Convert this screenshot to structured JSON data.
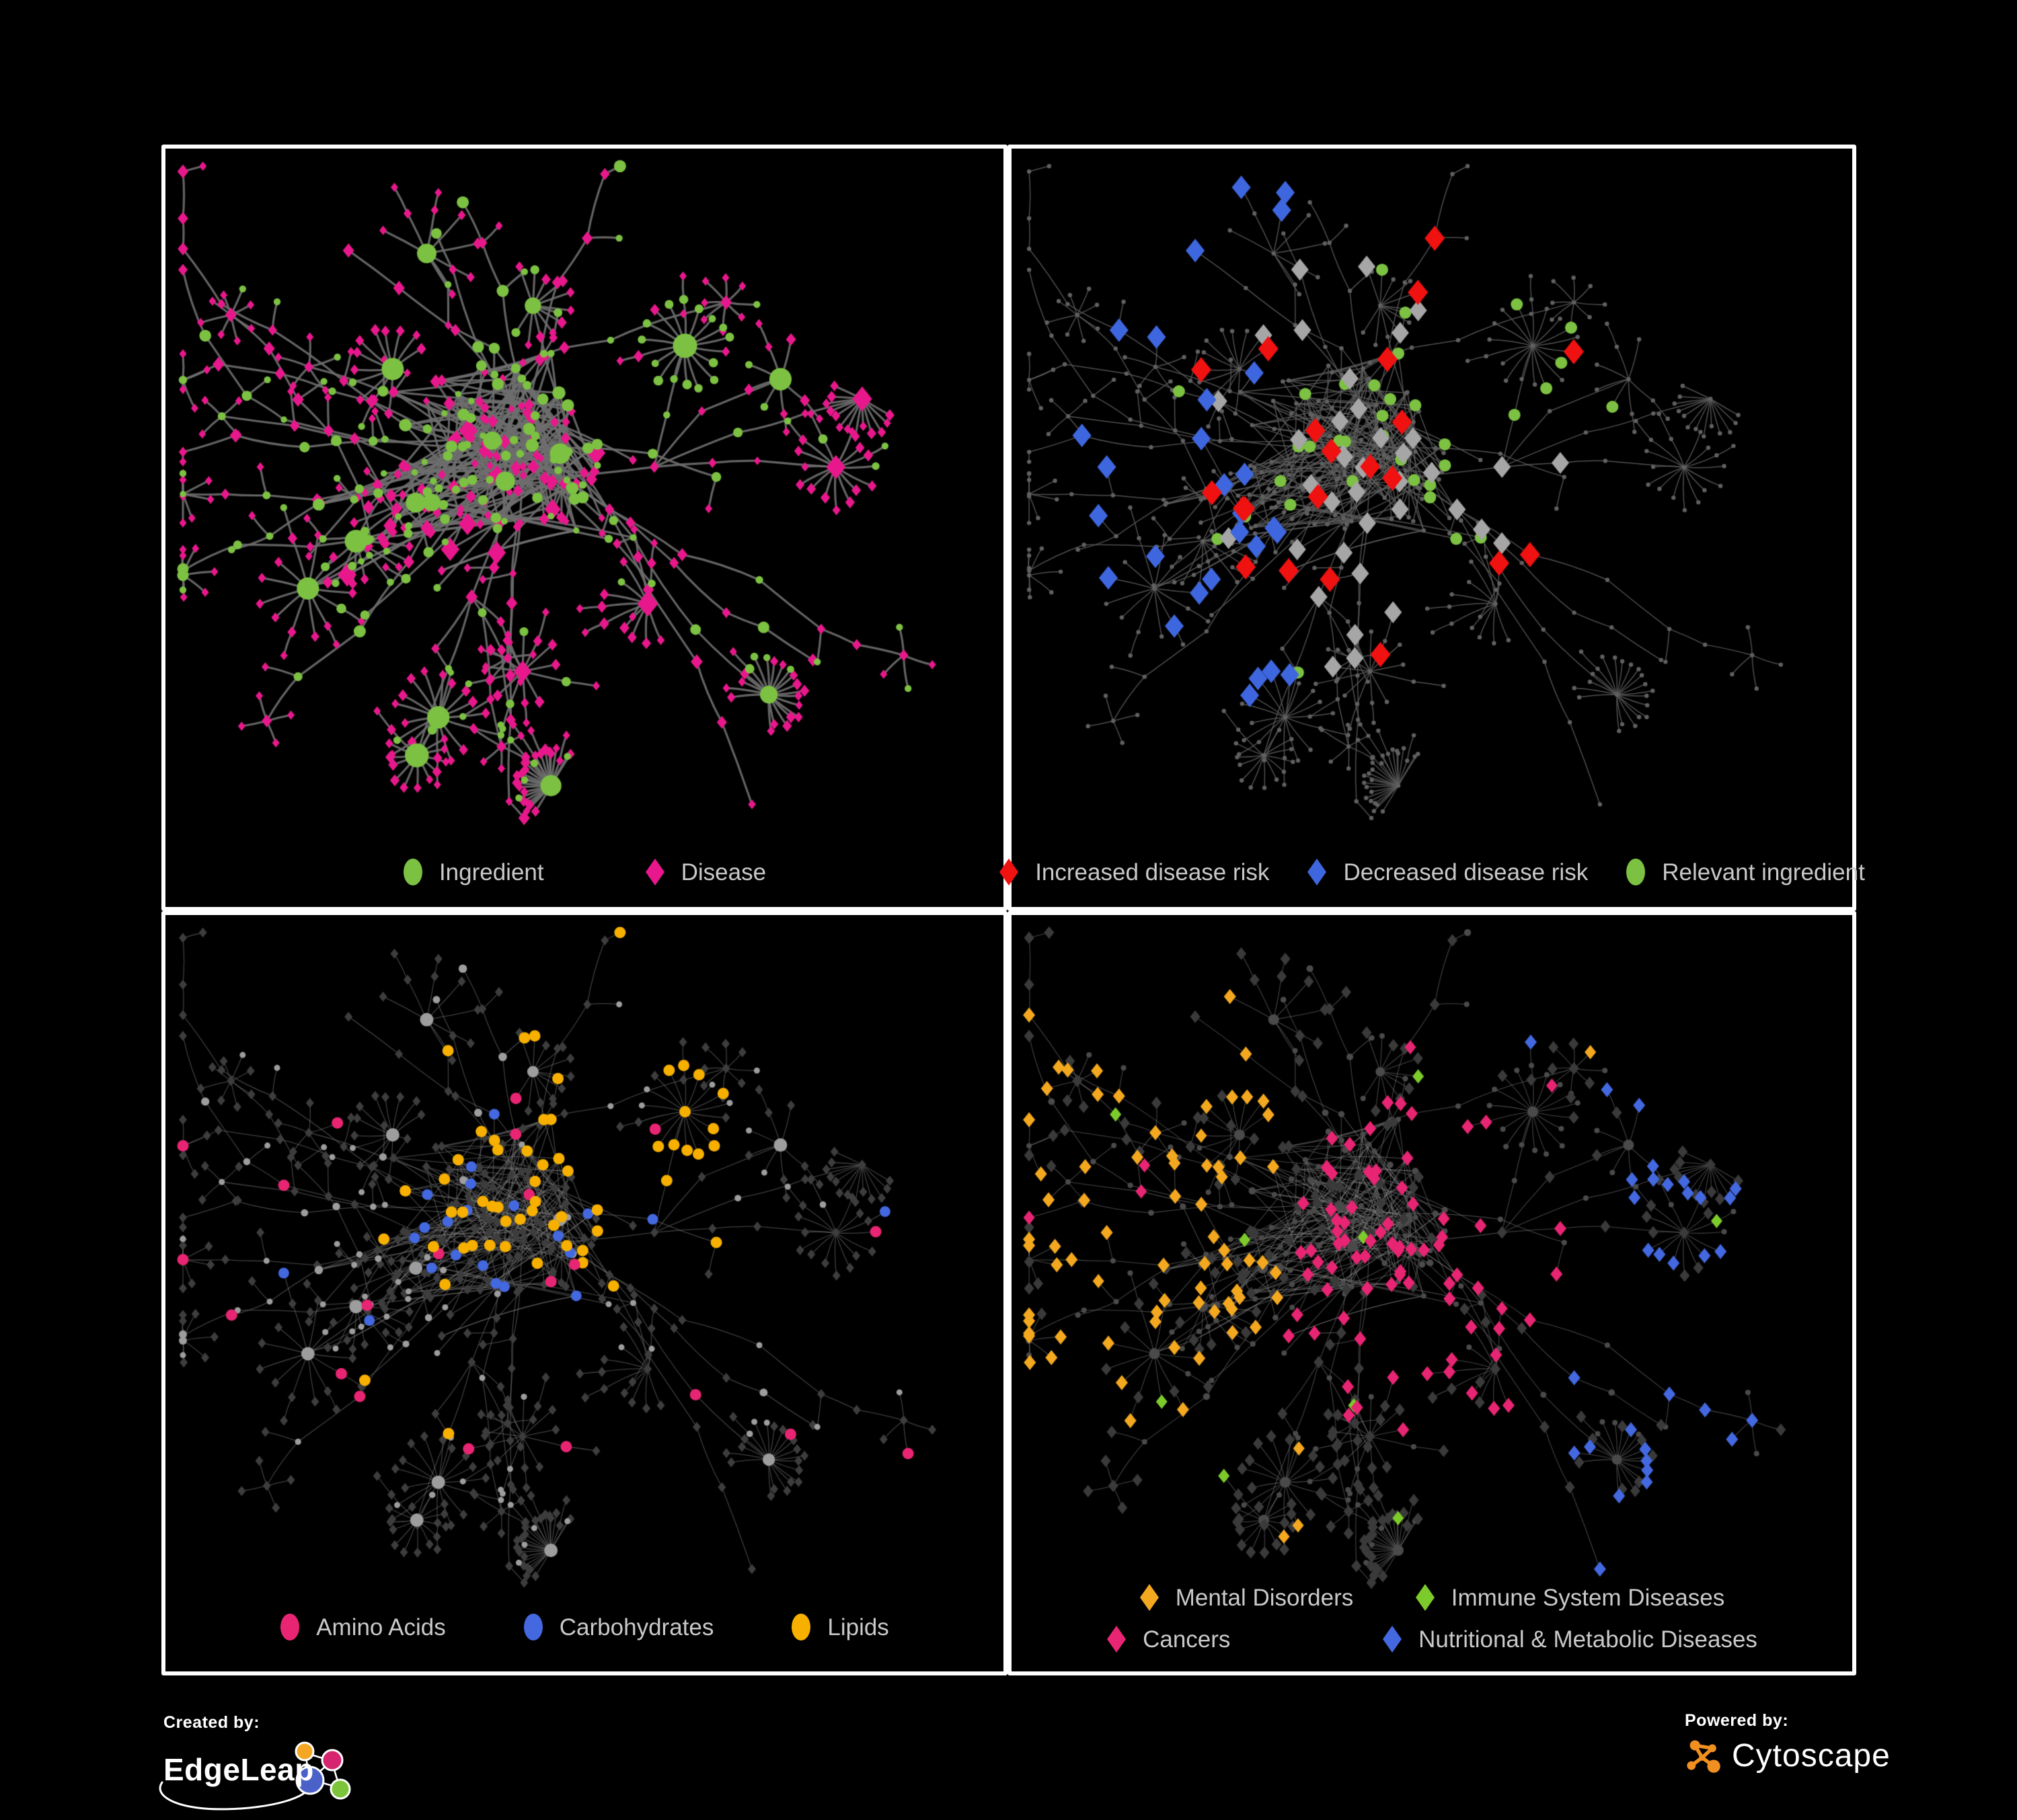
{
  "figure": {
    "background": "#000000",
    "panel_border_color": "#ffffff",
    "description": "Four views of the same ingredient-disease association network"
  },
  "panels": [
    {
      "id": "ingredient-disease",
      "legend": [
        {
          "label": "Ingredient",
          "shape": "ellipse",
          "color": "#7CC142"
        },
        {
          "label": "Disease",
          "shape": "diamond",
          "color": "#E8188C"
        }
      ]
    },
    {
      "id": "disease-risk",
      "legend": [
        {
          "label": "Increased disease risk",
          "shape": "diamond",
          "color": "#F01111"
        },
        {
          "label": "Decreased disease risk",
          "shape": "diamond",
          "color": "#3E66DE"
        },
        {
          "label": "Relevant ingredient",
          "shape": "ellipse",
          "color": "#7CC142"
        }
      ]
    },
    {
      "id": "macronutrients",
      "legend": [
        {
          "label": "Amino Acids",
          "shape": "ellipse",
          "color": "#E82573"
        },
        {
          "label": "Carbohydrates",
          "shape": "ellipse",
          "color": "#4368E0"
        },
        {
          "label": "Lipids",
          "shape": "ellipse",
          "color": "#F7B000"
        }
      ]
    },
    {
      "id": "disease-classes",
      "legend_rows": [
        [
          {
            "label": "Mental Disorders",
            "shape": "diamond",
            "color": "#F3A81F"
          },
          {
            "label": "Immune System Diseases",
            "shape": "diamond",
            "color": "#7CCB2B"
          }
        ],
        [
          {
            "label": "Cancers",
            "shape": "diamond",
            "color": "#E82573"
          },
          {
            "label": "Nutritional & Metabolic Diseases",
            "shape": "diamond",
            "color": "#4368E0"
          }
        ]
      ]
    }
  ],
  "footer": {
    "created_by": "Created by:",
    "brand": "EdgeLeap",
    "powered_by": "Powered by:",
    "engine": "Cytoscape",
    "brand_colors": {
      "orange": "#F5A623",
      "pink": "#D6246E",
      "blue": "#4A62C8",
      "green": "#7CC53A"
    },
    "cytoscape_orange": "#F19021"
  },
  "network": {
    "seed": 11,
    "node_types": [
      "ingredient",
      "disease"
    ],
    "legend_text_color": "#c9c9c9",
    "styles": {
      "overview": {
        "edge": "#6e6e6e",
        "edge_width": 3.2,
        "edge_alpha": 0.9,
        "ingredient": "#7CC142",
        "disease": "#E8188C"
      },
      "risk": {
        "edge": "#5d5d5d",
        "edge_width": 1.5,
        "edge_alpha": 0.85,
        "dim": "#606060",
        "increased": "#F01111",
        "decreased": "#3E66DE",
        "unchanged": "#A6A6A6",
        "relevant": "#7CC142"
      },
      "nutrients": {
        "edge": "#727272",
        "edge_width": 1.3,
        "edge_alpha": 0.55,
        "disease_dim": "#3d3d3d",
        "ingredient_dim": "#9d9d9d",
        "amino": "#E82573",
        "carbs": "#4368E0",
        "lipids": "#F7B000"
      },
      "classes": {
        "edge": "#8a8a8a",
        "edge_width": 1.1,
        "edge_alpha": 0.5,
        "ingredient_dim": "#4a4a4a",
        "disease_dim": "#3a3a3a",
        "mental": "#F3A81F",
        "immune": "#7CCB2B",
        "cancers": "#E82573",
        "nutritional": "#4368E0"
      }
    }
  }
}
